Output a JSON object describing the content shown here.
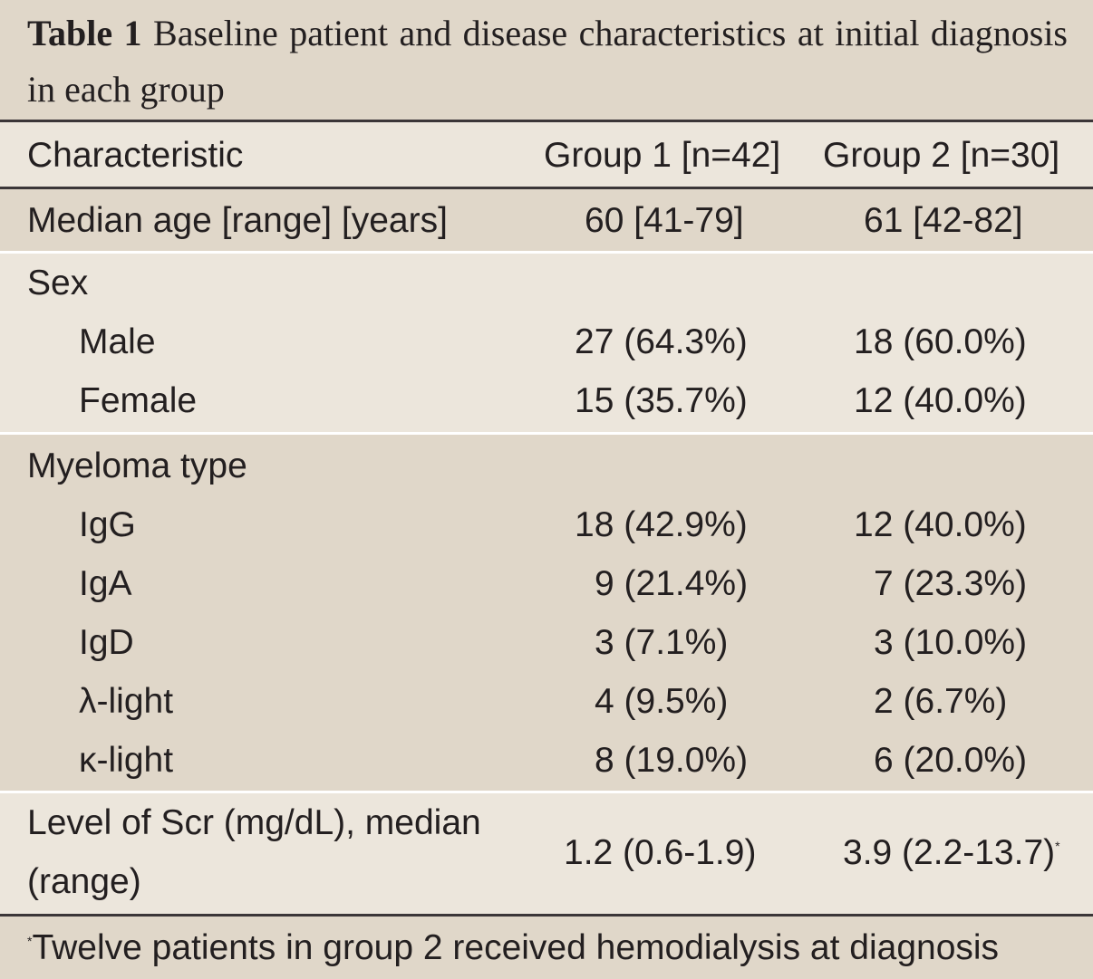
{
  "caption": {
    "label": "Table 1",
    "text": "Baseline patient and disease characteristics at initial diagnosis in each group"
  },
  "header": {
    "characteristic": "Characteristic",
    "group1": "Group 1 [n=42]",
    "group2": "Group 2 [n=30]"
  },
  "age": {
    "label": "Median age [range] [years]",
    "g1": "60 [41-79]",
    "g2": "61 [42-82]"
  },
  "sex": {
    "label": "Sex",
    "male": {
      "label": "Male",
      "g1": "27 (64.3%)",
      "g2": "18 (60.0%)"
    },
    "female": {
      "label": "Female",
      "g1": "15 (35.7%)",
      "g2": "12 (40.0%)"
    }
  },
  "myeloma": {
    "label": "Myeloma type",
    "igg": {
      "label": "IgG",
      "g1": "18 (42.9%)",
      "g2": "12 (40.0%)"
    },
    "iga": {
      "label": "IgA",
      "g1": "9 (21.4%)",
      "g2": "7 (23.3%)"
    },
    "igd": {
      "label": "IgD",
      "g1": "3 (7.1%)",
      "g2": "3 (10.0%)"
    },
    "lambda": {
      "label": "λ-light",
      "g1": "4 (9.5%)",
      "g2": "2 (6.7%)"
    },
    "kappa": {
      "label": "κ-light",
      "g1": "8 (19.0%)",
      "g2": "6 (20.0%)"
    }
  },
  "scr": {
    "label_line1": "Level of Scr (mg/dL), median",
    "label_line2": "(range)",
    "g1": "1.2 (0.6-1.9)",
    "g2": "3.9 (2.2-13.7)",
    "g2_mark": "*"
  },
  "footnote": {
    "mark": "*",
    "text": "Twelve patients in group 2 received hemodialysis at diagnosis"
  }
}
